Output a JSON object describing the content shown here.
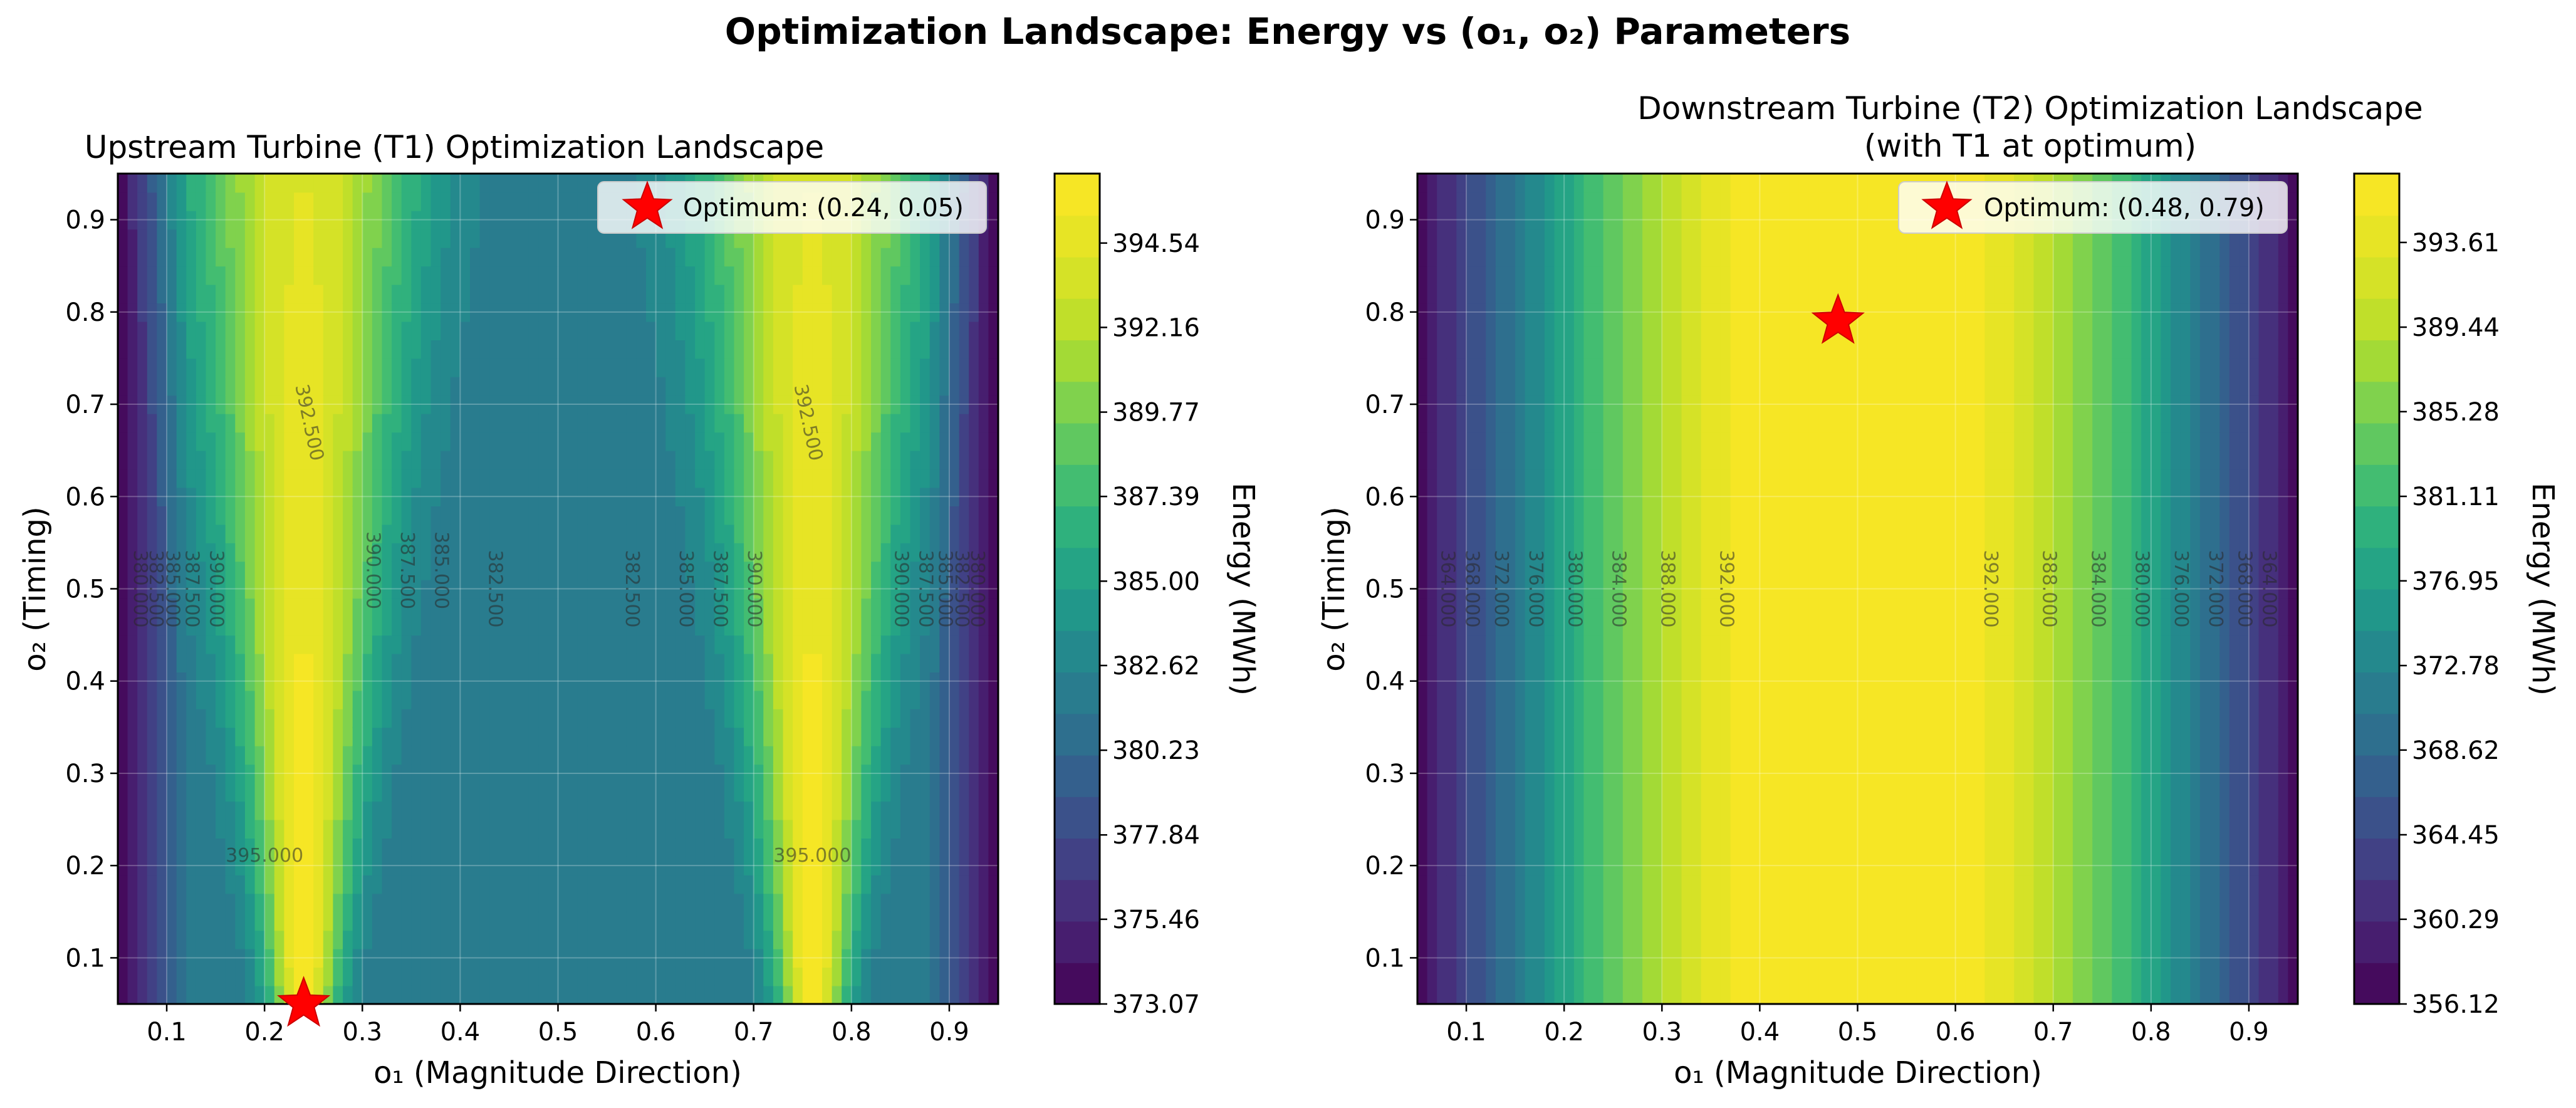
{
  "figure": {
    "title": "Optimization Landscape: Energy vs (o₁, o₂) Parameters"
  },
  "chart_data": [
    {
      "type": "heatmap",
      "title": "Upstream Turbine (T1) Optimization Landscape",
      "xlabel": "o₁ (Magnitude Direction)",
      "ylabel": "o₂ (Timing)",
      "xlim": [
        0.05,
        0.95
      ],
      "ylim": [
        0.05,
        0.95
      ],
      "xticks": [
        "0.1",
        "0.2",
        "0.3",
        "0.4",
        "0.5",
        "0.6",
        "0.7",
        "0.8",
        "0.9"
      ],
      "yticks": [
        "0.1",
        "0.2",
        "0.3",
        "0.4",
        "0.5",
        "0.6",
        "0.7",
        "0.8",
        "0.9"
      ],
      "colorbar_label": "Energy (MWh)",
      "colorbar_ticks": [
        "373.07",
        "375.46",
        "377.84",
        "380.23",
        "382.62",
        "385.00",
        "387.39",
        "389.77",
        "392.16",
        "394.54"
      ],
      "zlim": [
        373.07,
        396.5
      ],
      "colormap": "viridis",
      "grid": true,
      "contour_labels": [
        {
          "text": "392.500",
          "x": 0.245,
          "y": 0.68,
          "rot": 78
        },
        {
          "text": "392.500",
          "x": 0.755,
          "y": 0.68,
          "rot": 78
        },
        {
          "text": "395.000",
          "x": 0.2,
          "y": 0.21,
          "rot": 0
        },
        {
          "text": "395.000",
          "x": 0.76,
          "y": 0.21,
          "rot": 0
        },
        {
          "text": "390.000",
          "x": 0.31,
          "y": 0.52,
          "rot": 90
        },
        {
          "text": "387.500",
          "x": 0.345,
          "y": 0.52,
          "rot": 90
        },
        {
          "text": "385.000",
          "x": 0.38,
          "y": 0.52,
          "rot": 90
        },
        {
          "text": "382.500",
          "x": 0.435,
          "y": 0.5,
          "rot": 90
        },
        {
          "text": "382.500",
          "x": 0.575,
          "y": 0.5,
          "rot": 90
        },
        {
          "text": "385.000",
          "x": 0.63,
          "y": 0.5,
          "rot": 90
        },
        {
          "text": "387.500",
          "x": 0.665,
          "y": 0.5,
          "rot": 90
        },
        {
          "text": "390.000",
          "x": 0.7,
          "y": 0.5,
          "rot": 90
        },
        {
          "text": "390.000",
          "x": 0.15,
          "y": 0.5,
          "rot": 90
        },
        {
          "text": "387.500",
          "x": 0.125,
          "y": 0.5,
          "rot": 90
        },
        {
          "text": "385.000",
          "x": 0.105,
          "y": 0.5,
          "rot": 90
        },
        {
          "text": "382.500",
          "x": 0.088,
          "y": 0.5,
          "rot": 90
        },
        {
          "text": "380.000",
          "x": 0.072,
          "y": 0.5,
          "rot": 90
        },
        {
          "text": "390.000",
          "x": 0.85,
          "y": 0.5,
          "rot": 90
        },
        {
          "text": "387.500",
          "x": 0.875,
          "y": 0.5,
          "rot": 90
        },
        {
          "text": "385.000",
          "x": 0.895,
          "y": 0.5,
          "rot": 90
        },
        {
          "text": "382.500",
          "x": 0.912,
          "y": 0.5,
          "rot": 90
        },
        {
          "text": "380.000",
          "x": 0.928,
          "y": 0.5,
          "rot": 90
        }
      ],
      "optimum": {
        "x": 0.24,
        "y": 0.05
      },
      "legend": {
        "label": "Optimum: (0.24, 0.05)",
        "loc": "upper right"
      }
    },
    {
      "type": "heatmap",
      "title": "Downstream Turbine (T2) Optimization Landscape",
      "subtitle": "(with T1 at optimum)",
      "xlabel": "o₁ (Magnitude Direction)",
      "ylabel": "o₂ (Timing)",
      "xlim": [
        0.05,
        0.95
      ],
      "ylim": [
        0.05,
        0.95
      ],
      "xticks": [
        "0.1",
        "0.2",
        "0.3",
        "0.4",
        "0.5",
        "0.6",
        "0.7",
        "0.8",
        "0.9"
      ],
      "yticks": [
        "0.1",
        "0.2",
        "0.3",
        "0.4",
        "0.5",
        "0.6",
        "0.7",
        "0.8",
        "0.9"
      ],
      "colorbar_label": "Energy (MWh)",
      "colorbar_ticks": [
        "356.12",
        "360.29",
        "364.45",
        "368.62",
        "372.78",
        "376.95",
        "381.11",
        "385.28",
        "389.44",
        "393.61"
      ],
      "zlim": [
        356.12,
        397.0
      ],
      "colormap": "viridis",
      "grid": true,
      "contour_labels": [
        {
          "text": "392.000",
          "x": 0.365,
          "y": 0.5,
          "rot": 90
        },
        {
          "text": "388.000",
          "x": 0.305,
          "y": 0.5,
          "rot": 90
        },
        {
          "text": "384.000",
          "x": 0.255,
          "y": 0.5,
          "rot": 90
        },
        {
          "text": "380.000",
          "x": 0.21,
          "y": 0.5,
          "rot": 90
        },
        {
          "text": "376.000",
          "x": 0.17,
          "y": 0.5,
          "rot": 90
        },
        {
          "text": "372.000",
          "x": 0.135,
          "y": 0.5,
          "rot": 90
        },
        {
          "text": "368.000",
          "x": 0.105,
          "y": 0.5,
          "rot": 90
        },
        {
          "text": "364.000",
          "x": 0.08,
          "y": 0.5,
          "rot": 90
        },
        {
          "text": "392.000",
          "x": 0.635,
          "y": 0.5,
          "rot": 90
        },
        {
          "text": "388.000",
          "x": 0.695,
          "y": 0.5,
          "rot": 90
        },
        {
          "text": "384.000",
          "x": 0.745,
          "y": 0.5,
          "rot": 90
        },
        {
          "text": "380.000",
          "x": 0.79,
          "y": 0.5,
          "rot": 90
        },
        {
          "text": "376.000",
          "x": 0.83,
          "y": 0.5,
          "rot": 90
        },
        {
          "text": "372.000",
          "x": 0.865,
          "y": 0.5,
          "rot": 90
        },
        {
          "text": "368.000",
          "x": 0.895,
          "y": 0.5,
          "rot": 90
        },
        {
          "text": "364.000",
          "x": 0.92,
          "y": 0.5,
          "rot": 90
        }
      ],
      "optimum": {
        "x": 0.48,
        "y": 0.79
      },
      "legend": {
        "label": "Optimum: (0.48, 0.79)",
        "loc": "upper right"
      }
    }
  ]
}
